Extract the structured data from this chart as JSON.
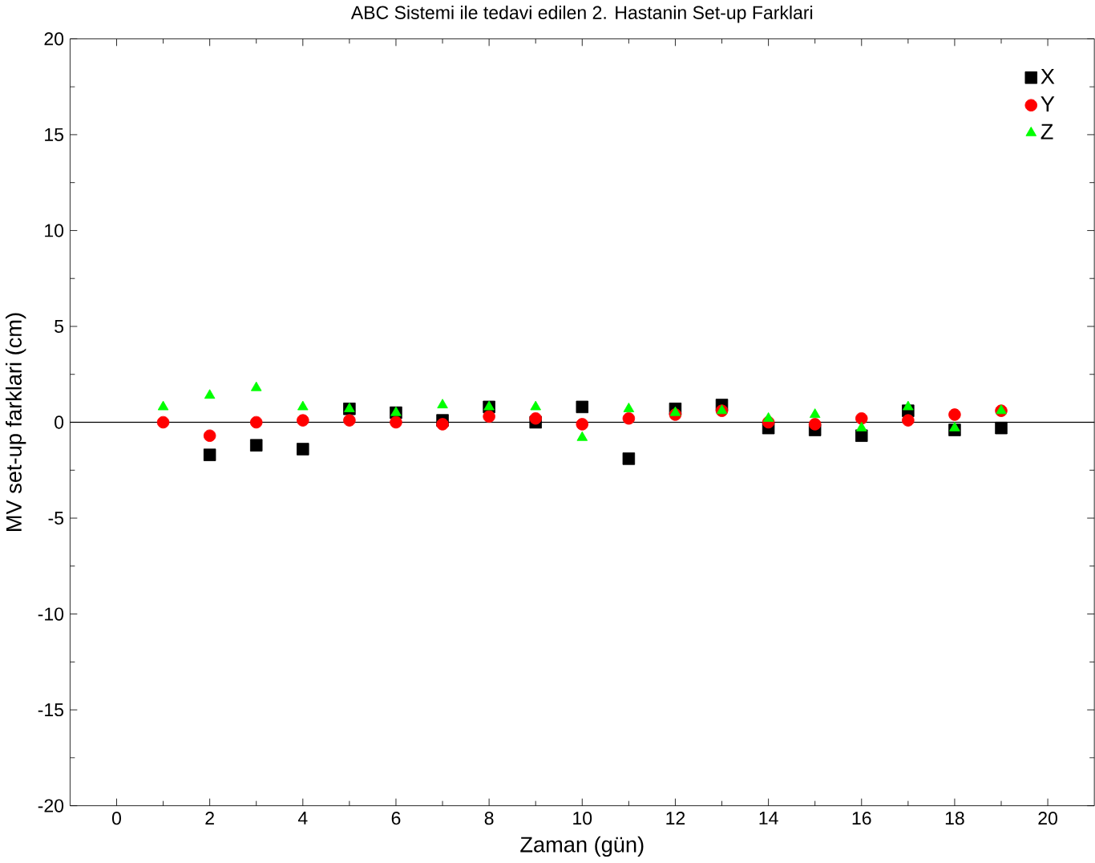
{
  "chart_data": {
    "type": "scatter",
    "title": "ABC Sistemi ile tedavi edilen 2. Hastanin Set-up Farklari",
    "xlabel": "Zaman (gün)",
    "ylabel": "MV set-up farklari (cm)",
    "x": [
      1,
      2,
      3,
      4,
      5,
      6,
      7,
      8,
      9,
      10,
      11,
      12,
      13,
      14,
      15,
      16,
      17,
      18,
      19
    ],
    "series": [
      {
        "name": "X",
        "color": "#000000",
        "marker": "square",
        "values": [
          null,
          -1.7,
          -1.2,
          -1.4,
          0.7,
          0.5,
          0.1,
          0.8,
          0,
          0.8,
          -1.9,
          0.7,
          0.9,
          -0.3,
          -0.4,
          -0.7,
          0.6,
          -0.4,
          -0.3
        ]
      },
      {
        "name": "Y",
        "color": "#ff0000",
        "marker": "circle",
        "values": [
          0,
          -0.7,
          0,
          0.1,
          0.1,
          0,
          -0.1,
          0.3,
          0.2,
          -0.1,
          0.2,
          0.4,
          0.6,
          0,
          -0.1,
          0.2,
          0.1,
          0.4,
          0.6
        ]
      },
      {
        "name": "Z",
        "color": "#00ff00",
        "marker": "triangle",
        "values": [
          0.8,
          1.4,
          1.8,
          0.8,
          0.7,
          0.5,
          0.9,
          0.8,
          0.8,
          -0.8,
          0.7,
          0.5,
          0.6,
          0.2,
          0.4,
          -0.3,
          0.8,
          -0.3,
          0.6
        ]
      }
    ],
    "xlim": [
      -1,
      21
    ],
    "ylim": [
      -20,
      20
    ],
    "xticks": [
      0,
      2,
      4,
      6,
      8,
      10,
      12,
      14,
      16,
      18,
      20
    ],
    "yticks": [
      -20,
      -15,
      -10,
      -5,
      0,
      5,
      10,
      15,
      20
    ],
    "ref_lines": [
      {
        "axis": "y",
        "value": 0,
        "color": "#000000"
      }
    ],
    "legend": "top right",
    "grid": false
  }
}
